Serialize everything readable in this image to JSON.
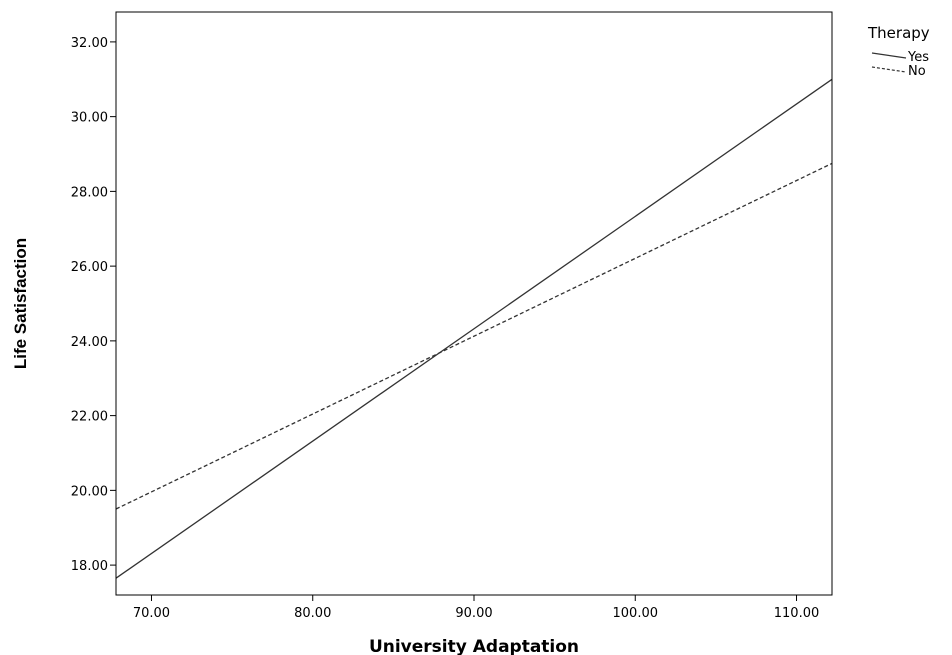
{
  "chart_data": {
    "type": "line",
    "xlabel": "University Adaptation",
    "ylabel": "Life Satisfaction",
    "xlim": [
      67.8,
      112.2
    ],
    "ylim": [
      17.2,
      32.8
    ],
    "x_ticks": [
      "70.00",
      "80.00",
      "90.00",
      "100.00",
      "110.00"
    ],
    "y_ticks": [
      "18.00",
      "20.00",
      "22.00",
      "24.00",
      "26.00",
      "28.00",
      "30.00",
      "32.00"
    ],
    "grid": false,
    "legend_title": "Therapy",
    "legend_position": "top-right",
    "series": [
      {
        "name": "Yes",
        "style": "solid",
        "color": "#333333",
        "x": [
          67.8,
          112.2
        ],
        "y": [
          17.65,
          31.0
        ]
      },
      {
        "name": "No",
        "style": "dashed",
        "color": "#333333",
        "x": [
          67.8,
          112.2
        ],
        "y": [
          19.5,
          28.75
        ]
      }
    ]
  }
}
